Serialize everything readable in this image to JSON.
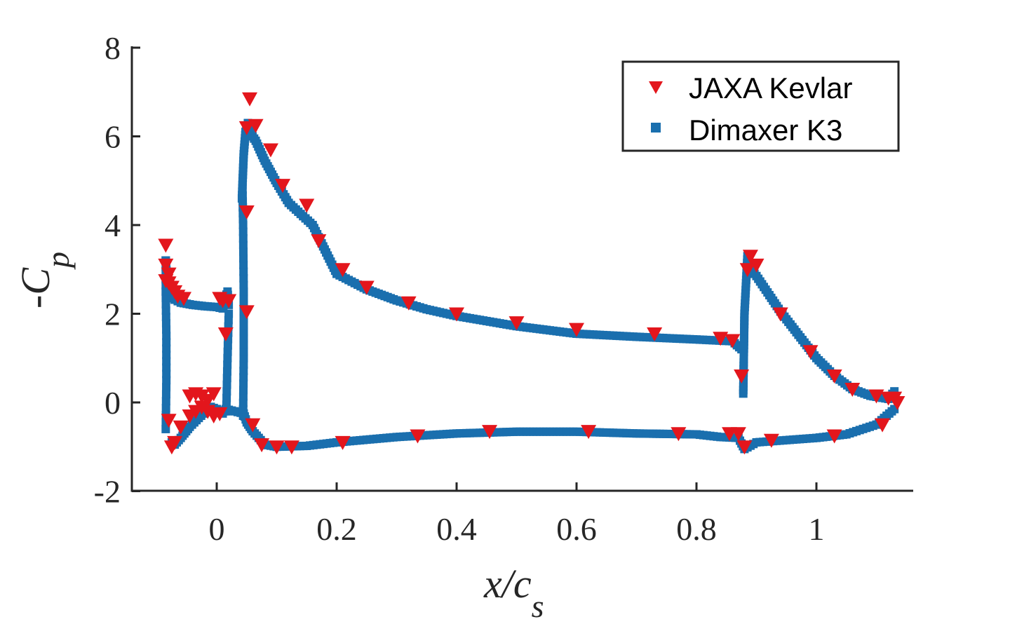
{
  "chart_data": {
    "type": "scatter",
    "title": "",
    "xlabel": {
      "main": "x/c",
      "subscript": "s"
    },
    "ylabel": {
      "main": "-C",
      "subscript": "p"
    },
    "xlim": [
      -0.14,
      1.16
    ],
    "ylim": [
      -2,
      8
    ],
    "xticks": [
      0,
      0.2,
      0.4,
      0.6,
      0.8,
      1
    ],
    "xtick_labels": [
      "0",
      "0.2",
      "0.4",
      "0.6",
      "0.8",
      "1"
    ],
    "yticks": [
      -2,
      0,
      2,
      4,
      6,
      8
    ],
    "ytick_labels": [
      "-2",
      "0",
      "2",
      "4",
      "6",
      "8"
    ],
    "legend_position": "top-right",
    "series": [
      {
        "name": "JAXA Kevlar",
        "marker": "triangle-down",
        "color": "#e3161c",
        "x": [
          -0.085,
          -0.085,
          -0.08,
          -0.085,
          -0.08,
          -0.075,
          -0.07,
          -0.065,
          -0.055,
          -0.045,
          -0.035,
          -0.025,
          -0.015,
          -0.005,
          0.005,
          0.01,
          0.015,
          0.02,
          0.02,
          0.05,
          0.05,
          0.05,
          0.055,
          0.065,
          0.09,
          0.11,
          0.15,
          0.17,
          0.21,
          0.25,
          0.32,
          0.4,
          0.5,
          0.6,
          0.73,
          0.84,
          0.86,
          -0.08,
          -0.075,
          -0.07,
          -0.06,
          -0.045,
          -0.035,
          -0.025,
          -0.015,
          -0.005,
          0.005,
          0.06,
          0.075,
          0.1,
          0.125,
          0.21,
          0.335,
          0.455,
          0.62,
          0.77,
          0.855,
          0.87,
          0.88,
          0.925,
          1.03,
          1.11,
          1.13,
          1.135,
          0.875,
          0.885,
          0.89,
          0.9,
          0.94,
          0.99,
          1.03,
          1.06,
          1.1,
          1.12
        ],
        "y": [
          3.55,
          3.1,
          2.9,
          2.75,
          2.7,
          2.6,
          2.5,
          2.4,
          2.35,
          0.15,
          0.2,
          0.15,
          0.05,
          0.2,
          2.35,
          2.3,
          1.55,
          2.3,
          2.3,
          6.2,
          4.3,
          2.05,
          6.85,
          6.25,
          5.7,
          4.9,
          4.45,
          3.65,
          3.0,
          2.6,
          2.25,
          2.0,
          1.8,
          1.65,
          1.55,
          1.45,
          1.4,
          -0.4,
          -1.0,
          -0.9,
          -0.55,
          -0.3,
          -0.2,
          -0.1,
          -0.2,
          -0.3,
          -0.25,
          -0.5,
          -0.95,
          -1.0,
          -1.0,
          -0.9,
          -0.75,
          -0.65,
          -0.65,
          -0.7,
          -0.7,
          -0.7,
          -1.0,
          -0.85,
          -0.75,
          -0.5,
          0.1,
          0.0,
          0.6,
          3.0,
          3.3,
          3.1,
          2.0,
          1.15,
          0.6,
          0.3,
          0.15,
          0.1
        ]
      },
      {
        "name": "Dimaxer K3",
        "marker": "square",
        "color": "#1a6fae"
      }
    ]
  }
}
